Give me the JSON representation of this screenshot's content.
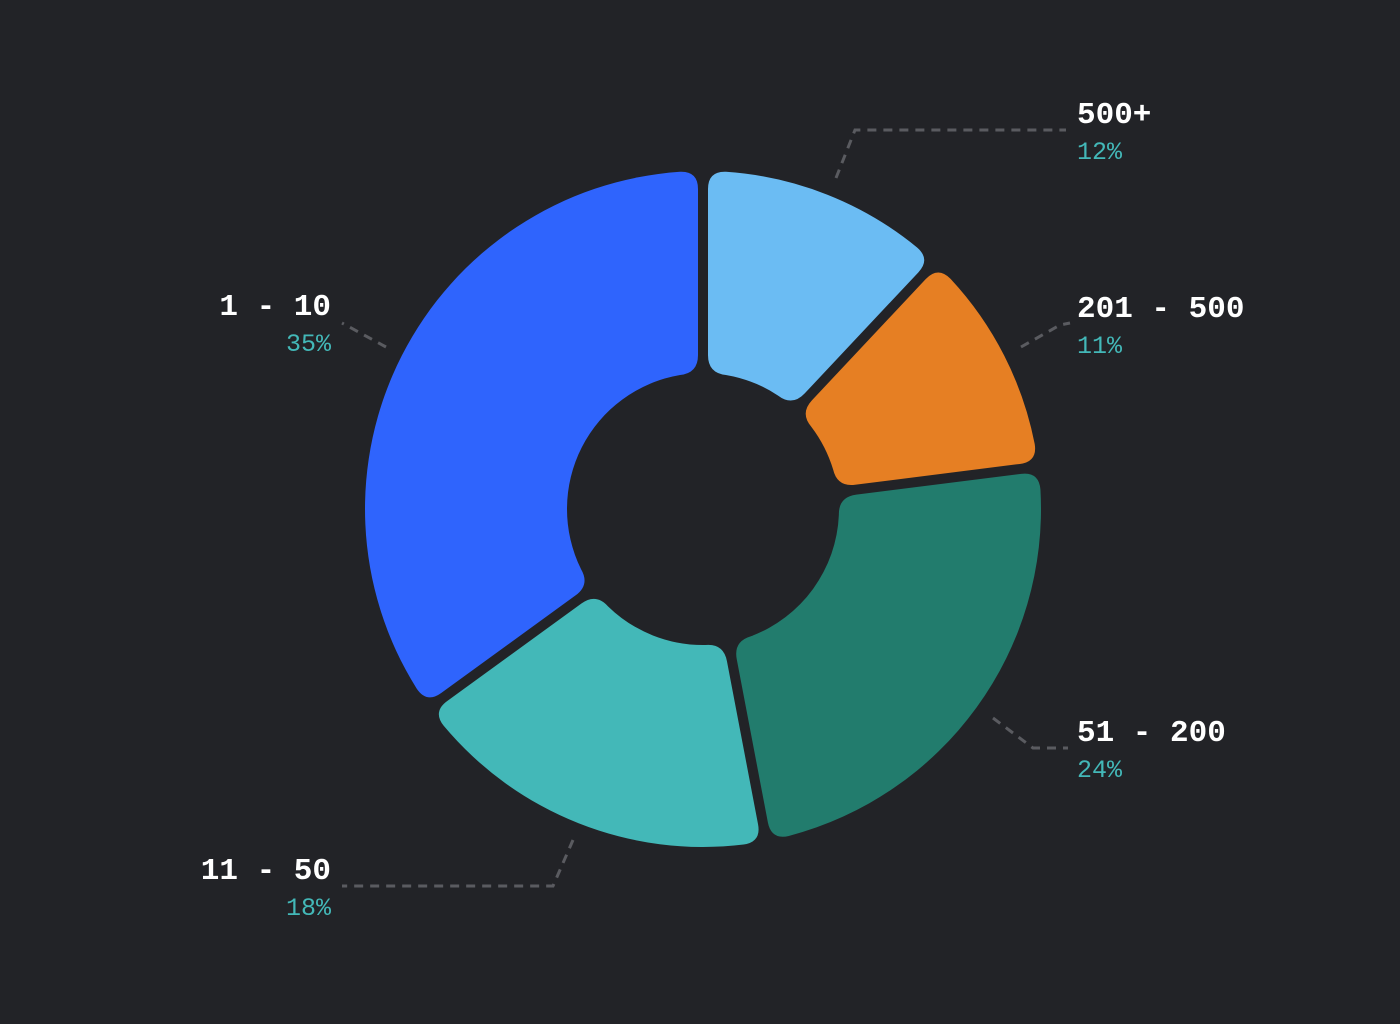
{
  "chart_data": {
    "type": "pie",
    "variant": "donut",
    "legend": "none",
    "slices": [
      {
        "label": "500+",
        "percent_label": "12%",
        "value": 12,
        "color": "#6bbcf3"
      },
      {
        "label": "201 - 500",
        "percent_label": "11%",
        "value": 11,
        "color": "#e67f23"
      },
      {
        "label": "51 - 200",
        "percent_label": "24%",
        "value": 24,
        "color": "#227c6d"
      },
      {
        "label": "11 - 50",
        "percent_label": "18%",
        "value": 18,
        "color": "#43b8b8"
      },
      {
        "label": "1 - 10",
        "percent_label": "35%",
        "value": 35,
        "color": "#2f64fd"
      }
    ]
  }
}
